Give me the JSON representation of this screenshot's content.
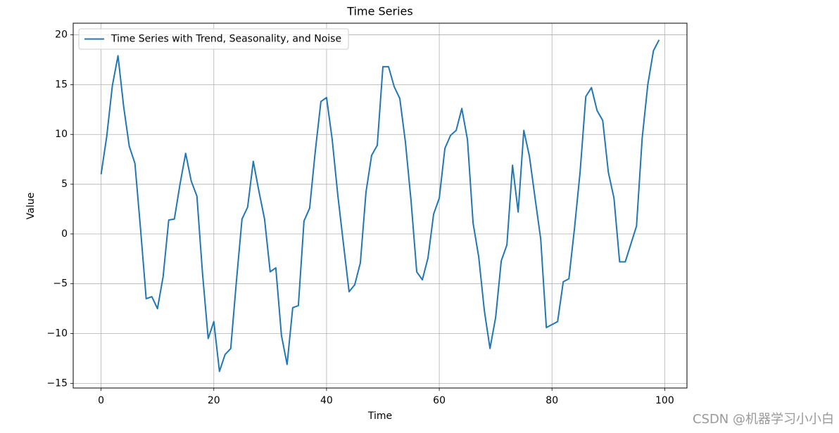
{
  "chart_data": {
    "type": "line",
    "title": "Time Series",
    "x_label": "Time",
    "y_label": "Value",
    "x": [
      0,
      1,
      2,
      3,
      4,
      5,
      6,
      7,
      8,
      9,
      10,
      11,
      12,
      13,
      14,
      15,
      16,
      17,
      18,
      19,
      20,
      21,
      22,
      23,
      24,
      25,
      26,
      27,
      28,
      29,
      30,
      31,
      32,
      33,
      34,
      35,
      36,
      37,
      38,
      39,
      40,
      41,
      42,
      43,
      44,
      45,
      46,
      47,
      48,
      49,
      50,
      51,
      52,
      53,
      54,
      55,
      56,
      57,
      58,
      59,
      60,
      61,
      62,
      63,
      64,
      65,
      66,
      67,
      68,
      69,
      70,
      71,
      72,
      73,
      74,
      75,
      76,
      77,
      78,
      79,
      80,
      81,
      82,
      83,
      84,
      85,
      86,
      87,
      88,
      89,
      90,
      91,
      92,
      93,
      94,
      95,
      96,
      97,
      98,
      99
    ],
    "series": [
      {
        "name": "Time Series with Trend, Seasonality, and Noise",
        "color": "#1f77b4",
        "values": [
          6.0,
          9.8,
          14.9,
          17.9,
          12.8,
          8.8,
          7.1,
          0.5,
          -6.5,
          -6.3,
          -7.5,
          -4.3,
          1.4,
          1.5,
          5.0,
          8.1,
          5.3,
          3.8,
          -4.0,
          -10.5,
          -8.8,
          -13.8,
          -12.1,
          -11.5,
          -4.8,
          1.5,
          2.7,
          7.3,
          4.3,
          1.5,
          -3.8,
          -3.4,
          -10.2,
          -13.1,
          -7.4,
          -7.2,
          1.3,
          2.6,
          8.3,
          13.3,
          13.7,
          9.5,
          3.9,
          -1.0,
          -5.8,
          -5.1,
          -2.9,
          4.2,
          7.9,
          8.9,
          16.8,
          16.8,
          14.8,
          13.6,
          9.2,
          3.3,
          -3.8,
          -4.6,
          -2.4,
          2.0,
          3.6,
          8.6,
          9.9,
          10.4,
          12.6,
          9.5,
          1.1,
          -2.3,
          -7.7,
          -11.5,
          -8.4,
          -2.7,
          -1.1,
          6.9,
          2.2,
          10.4,
          7.8,
          3.6,
          -0.5,
          -9.4,
          -9.1,
          -8.8,
          -4.8,
          -4.5,
          0.6,
          6.3,
          13.8,
          14.7,
          12.4,
          11.4,
          6.2,
          3.6,
          -2.8,
          -2.8,
          -1.0,
          0.8,
          9.6,
          15.0,
          18.4,
          19.5
        ]
      }
    ],
    "xlim": [
      -4.95,
      103.95
    ],
    "ylim": [
      -15.47,
      21.17
    ],
    "xticks": [
      0,
      20,
      40,
      60,
      80,
      100
    ],
    "yticks": [
      {
        "value": -15,
        "label": "−15"
      },
      {
        "value": -10,
        "label": "−10"
      },
      {
        "value": -5,
        "label": "−5"
      },
      0,
      5,
      10,
      15,
      20
    ],
    "grid": true,
    "legend_position": "upper-left",
    "watermark": "CSDN @机器学习小小白"
  }
}
